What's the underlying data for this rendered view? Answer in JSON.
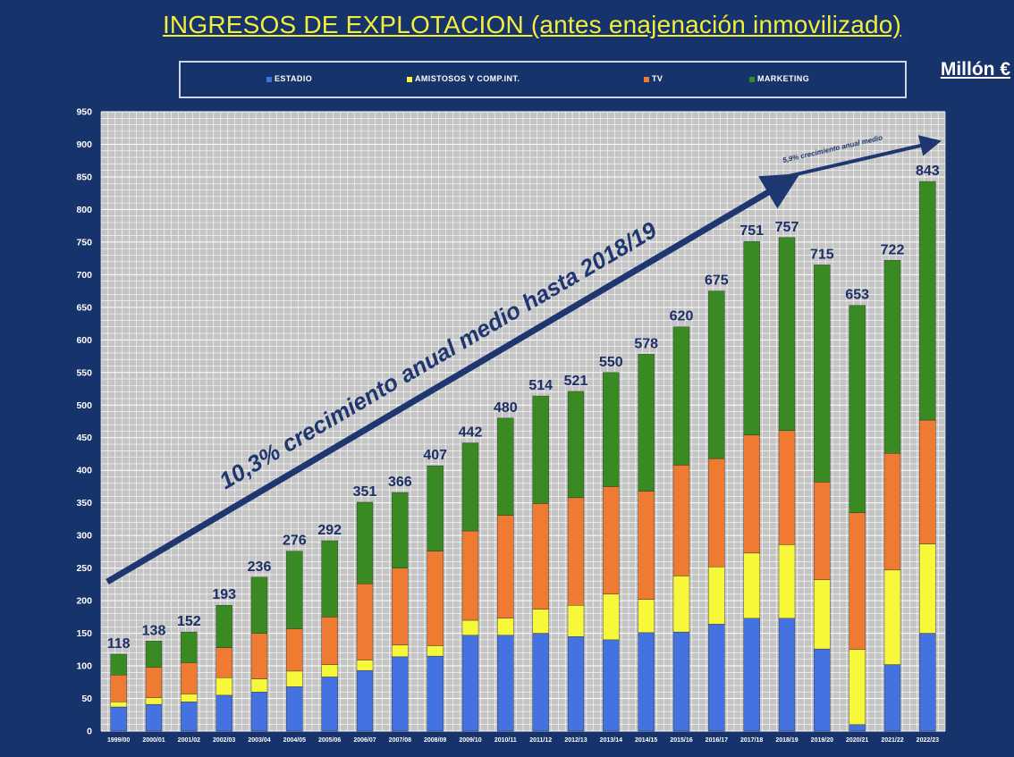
{
  "chart_data": {
    "type": "bar",
    "stacked": true,
    "title": "INGRESOS DE EXPLOTACION (antes enajenación inmovilizado)",
    "unit": "Millón €",
    "ylim": [
      0,
      950
    ],
    "yticks": [
      0,
      50,
      100,
      150,
      200,
      250,
      300,
      350,
      400,
      450,
      500,
      550,
      600,
      650,
      700,
      750,
      800,
      850,
      900,
      950
    ],
    "categories": [
      "1999/00",
      "2000/01",
      "2001/02",
      "2002/03",
      "2003/04",
      "2004/05",
      "2005/06",
      "2006/07",
      "2007/08",
      "2008/09",
      "2009/10",
      "2010/11",
      "2011/12",
      "2012/13",
      "2013/14",
      "2014/15",
      "2015/16",
      "2016/17",
      "2017/18",
      "2018/19",
      "2019/20",
      "2020/21",
      "2021/22",
      "2022/23"
    ],
    "series": [
      {
        "name": "ESTADIO",
        "color": "#4472e0",
        "values": [
          37,
          41,
          45,
          55,
          60,
          68,
          83,
          93,
          114,
          115,
          147,
          147,
          150,
          145,
          140,
          151,
          152,
          164,
          173,
          173,
          126,
          10,
          102,
          150
        ]
      },
      {
        "name": "AMISTOSOS Y COMP.INT.",
        "color": "#f8f83a",
        "values": [
          8,
          10,
          12,
          27,
          20,
          24,
          19,
          16,
          18,
          16,
          23,
          26,
          37,
          48,
          70,
          51,
          86,
          88,
          100,
          113,
          106,
          115,
          145,
          137
        ]
      },
      {
        "name": "TV",
        "color": "#ef7a32",
        "values": [
          41,
          47,
          48,
          46,
          70,
          65,
          73,
          117,
          118,
          145,
          137,
          158,
          162,
          165,
          165,
          166,
          170,
          166,
          181,
          175,
          150,
          210,
          179,
          190
        ]
      },
      {
        "name": "MARKETING",
        "color": "#3a8a23",
        "values": [
          32,
          40,
          47,
          65,
          86,
          119,
          117,
          125,
          116,
          131,
          135,
          149,
          165,
          163,
          175,
          210,
          212,
          257,
          297,
          296,
          333,
          318,
          296,
          366
        ]
      }
    ],
    "totals": [
      "118",
      "138",
      "152",
      "193",
      "236",
      "276",
      "292",
      "351",
      "366",
      "407",
      "442",
      "480",
      "514",
      "521",
      "550",
      "578",
      "620",
      "675",
      "751",
      "757",
      "715",
      "653",
      "722",
      "843"
    ],
    "annotations": [
      {
        "text": "10,3% crecimiento anual medio hasta 2018/19"
      },
      {
        "text": "5,9% crecimiento anual medio"
      }
    ]
  },
  "colors": {
    "background": "#17336b",
    "title": "#f2ee3a",
    "plot_bg": "#c4c4c4",
    "gridline": "#ffffff",
    "arrow": "#1f3770",
    "total_label": "#1c2f66",
    "axis_text": "#ffffff"
  }
}
